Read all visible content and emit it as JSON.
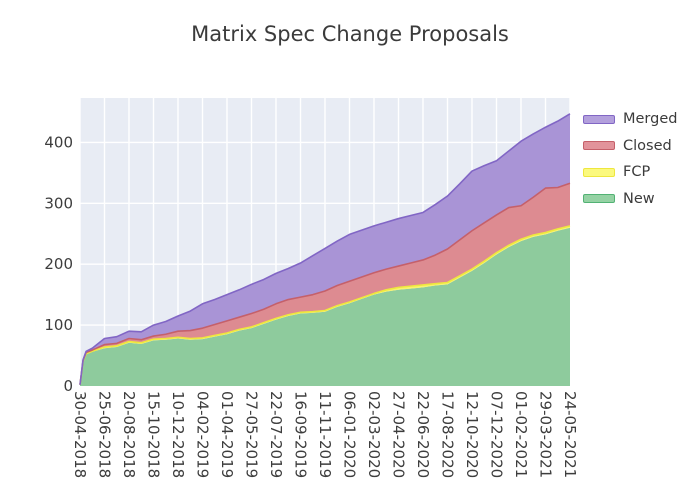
{
  "title": "Matrix Spec Change Proposals",
  "text_color": "#3b3b3b",
  "tick_color": "#3d3d3d",
  "legend": {
    "items": [
      {
        "label": "Merged",
        "fill": "#b3a0dc",
        "edge": "#8166c5"
      },
      {
        "label": "Closed",
        "fill": "#e2939b",
        "edge": "#c5606a"
      },
      {
        "label": "FCP",
        "fill": "#fbf97e",
        "edge": "#eee73e"
      },
      {
        "label": "New",
        "fill": "#95d2a4",
        "edge": "#52b274"
      }
    ]
  },
  "chart_data": {
    "type": "area",
    "stacked": true,
    "title": "Matrix Spec Change Proposals",
    "xlabel": "",
    "ylabel": "",
    "background": "#e8ecf4",
    "gridline_color": "#ffffff",
    "grid": true,
    "legend_position": "outside-top-right",
    "ylim": [
      0,
      473
    ],
    "y_ticks": [
      0,
      100,
      200,
      300,
      400
    ],
    "x_tick_labels": [
      "30-04-2018",
      "25-06-2018",
      "20-08-2018",
      "15-10-2018",
      "10-12-2018",
      "04-02-2019",
      "01-04-2019",
      "27-05-2019",
      "22-07-2019",
      "16-09-2019",
      "11-11-2019",
      "06-01-2020",
      "02-03-2020",
      "27-04-2020",
      "22-06-2020",
      "17-08-2020",
      "12-10-2020",
      "07-12-2020",
      "01-02-2021",
      "29-03-2021",
      "24-05-2021"
    ],
    "x": [
      "30-04-2018",
      "07-05-2018",
      "14-05-2018",
      "28-05-2018",
      "25-06-2018",
      "23-07-2018",
      "20-08-2018",
      "17-09-2018",
      "15-10-2018",
      "12-11-2018",
      "10-12-2018",
      "07-01-2019",
      "04-02-2019",
      "04-03-2019",
      "01-04-2019",
      "29-04-2019",
      "27-05-2019",
      "24-06-2019",
      "22-07-2019",
      "19-08-2019",
      "16-09-2019",
      "14-10-2019",
      "11-11-2019",
      "09-12-2019",
      "06-01-2020",
      "03-02-2020",
      "02-03-2020",
      "30-03-2020",
      "27-04-2020",
      "25-05-2020",
      "22-06-2020",
      "20-07-2020",
      "17-08-2020",
      "14-09-2020",
      "12-10-2020",
      "09-11-2020",
      "07-12-2020",
      "04-01-2021",
      "01-02-2021",
      "01-03-2021",
      "29-03-2021",
      "26-04-2021",
      "24-05-2021"
    ],
    "series": [
      {
        "name": "New",
        "fill": "#8ecb9d",
        "edge": "none",
        "values": [
          2,
          40,
          52,
          56,
          62,
          64,
          71,
          69,
          75,
          76,
          78,
          76,
          77,
          81,
          85,
          91,
          95,
          102,
          109,
          115,
          119,
          120,
          122,
          130,
          136,
          143,
          150,
          155,
          158,
          160,
          162,
          165,
          167,
          178,
          189,
          202,
          216,
          228,
          238,
          245,
          249,
          255,
          260
        ]
      },
      {
        "name": "FCP",
        "fill": "#f8f46c",
        "edge": "#eee73e",
        "values": [
          0,
          1,
          1,
          1,
          2,
          2,
          2,
          2,
          2,
          2,
          2,
          2,
          2,
          2,
          2,
          2,
          2,
          2,
          2,
          2,
          2,
          2,
          2,
          2,
          2,
          2,
          2,
          3,
          4,
          4,
          4,
          3,
          3,
          3,
          3,
          3,
          3,
          3,
          3,
          3,
          3,
          3,
          3
        ]
      },
      {
        "name": "Closed",
        "fill": "#dd8b91",
        "edge": "#c5606a",
        "values": [
          0,
          1,
          2,
          2,
          4,
          4,
          5,
          5,
          5,
          7,
          10,
          13,
          16,
          18,
          20,
          20,
          22,
          22,
          24,
          25,
          25,
          28,
          32,
          33,
          34,
          34,
          34,
          34,
          35,
          38,
          41,
          47,
          55,
          59,
          63,
          63,
          62,
          62,
          55,
          62,
          73,
          68,
          70
        ]
      },
      {
        "name": "Merged",
        "fill": "#a994d6",
        "edge": "#8166c5",
        "values": [
          0,
          1,
          2,
          3,
          10,
          11,
          12,
          13,
          18,
          21,
          25,
          32,
          40,
          41,
          43,
          45,
          48,
          49,
          50,
          51,
          56,
          64,
          70,
          73,
          77,
          77,
          77,
          77,
          78,
          78,
          78,
          83,
          87,
          92,
          98,
          94,
          89,
          93,
          106,
          104,
          100,
          109,
          114
        ]
      }
    ]
  }
}
